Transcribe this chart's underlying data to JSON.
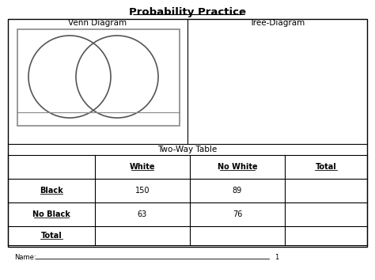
{
  "title": "Probability Practice",
  "venn_label": "Venn Diagram",
  "tree_label": "Tree-Diagram",
  "table_label": "Two-Way Table",
  "col_headers": [
    "White",
    "No White",
    "Total"
  ],
  "row_headers": [
    "Black",
    "No Black",
    "Total"
  ],
  "table_data": [
    [
      "150",
      "89",
      ""
    ],
    [
      "63",
      "76",
      ""
    ],
    [
      "",
      "",
      ""
    ]
  ],
  "name_label": "Name:",
  "page_num": "1",
  "bg_color": "#ffffff",
  "border_color": "#000000",
  "text_color": "#000000",
  "venn_circle_color": "#555555",
  "inner_box_color": "#888888",
  "title_fontsize": 9.5,
  "section_fontsize": 7.5,
  "table_fontsize": 7,
  "name_fontsize": 6
}
